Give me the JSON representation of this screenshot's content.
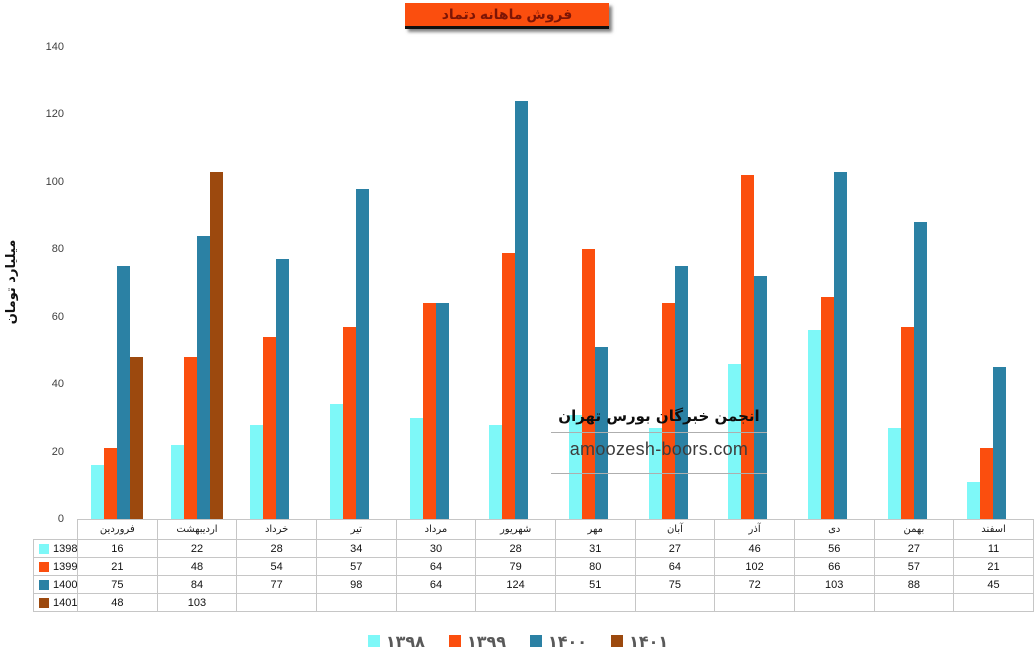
{
  "title": "فروش ماهانه دتماد",
  "y_axis": {
    "label": "میلیارد تومان"
  },
  "watermark": {
    "line1": "انجمن خبرگان بورس تهران",
    "line2": "amoozesh-boors.com"
  },
  "colors": {
    "title_bg": "#FB4E0E",
    "title_text": "#7E1505",
    "series_1398": "#7EF8F8",
    "series_1399": "#FB4E0E",
    "series_1400": "#2B81A4",
    "series_1401": "#9C490E",
    "table_border": "#C6C6C6",
    "legend_text": "#595959",
    "axis_text": "#3F3F3F"
  },
  "chart_data": {
    "type": "bar",
    "title": "فروش ماهانه دتماد",
    "xlabel": "",
    "ylabel": "میلیارد تومان",
    "ylim": [
      0,
      140
    ],
    "yticks": [
      0,
      20,
      40,
      60,
      80,
      100,
      120,
      140
    ],
    "grid": false,
    "legend_position": "bottom",
    "data_table_shown": true,
    "categories": [
      "فروردین",
      "اردیبهشت",
      "خرداد",
      "تیر",
      "مرداد",
      "شهریور",
      "مهر",
      "آبان",
      "آذر",
      "دی",
      "بهمن",
      "اسفند"
    ],
    "series": [
      {
        "name": "1398",
        "legend_label": "۱۳۹۸",
        "color": "#7EF8F8",
        "values": [
          16,
          22,
          28,
          34,
          30,
          28,
          31,
          27,
          46,
          56,
          27,
          11
        ]
      },
      {
        "name": "1399",
        "legend_label": "۱۳۹۹",
        "color": "#FB4E0E",
        "values": [
          21,
          48,
          54,
          57,
          64,
          79,
          80,
          64,
          102,
          66,
          57,
          21
        ]
      },
      {
        "name": "1400",
        "legend_label": "۱۴۰۰",
        "color": "#2B81A4",
        "values": [
          75,
          84,
          77,
          98,
          64,
          124,
          51,
          75,
          72,
          103,
          88,
          45
        ]
      },
      {
        "name": "1401",
        "legend_label": "۱۴۰۱",
        "color": "#9C490E",
        "values": [
          48,
          103,
          null,
          null,
          null,
          null,
          null,
          null,
          null,
          null,
          null,
          null
        ]
      }
    ]
  }
}
